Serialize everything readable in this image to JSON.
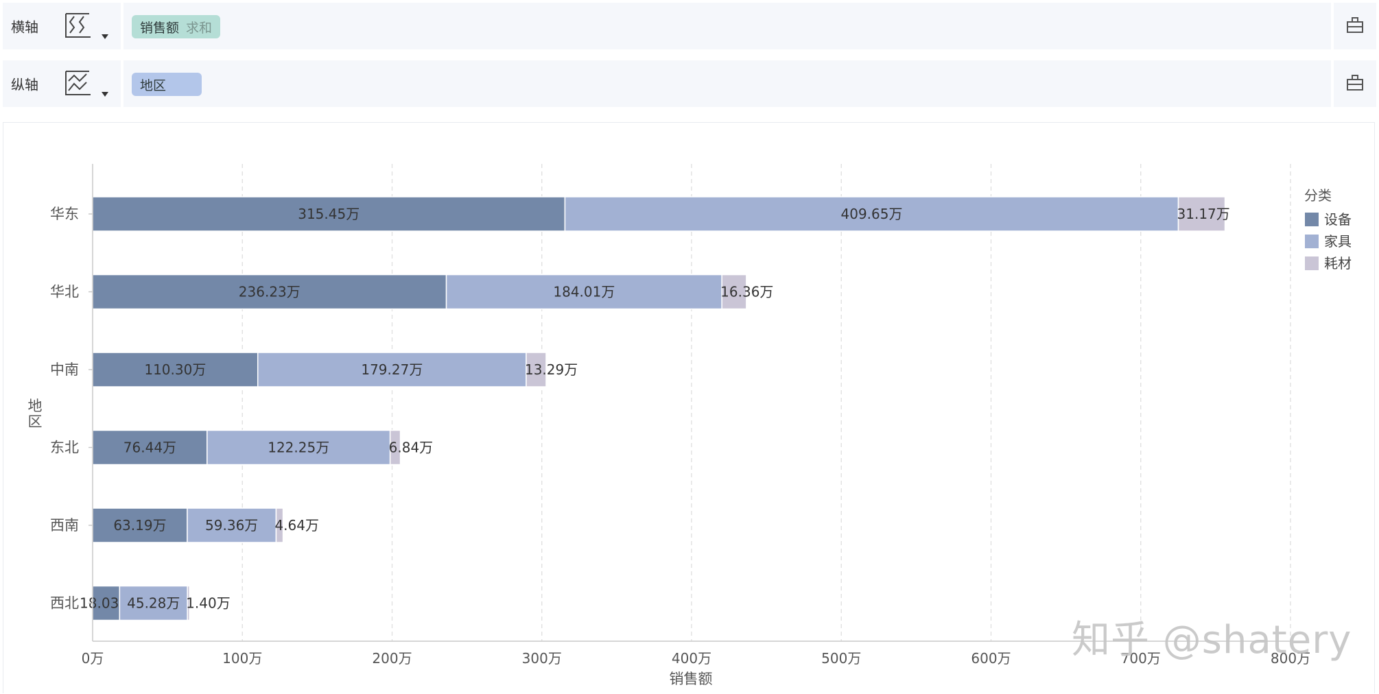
{
  "shelves": {
    "x_axis": {
      "label": "横轴",
      "field": "销售额",
      "aggregation": "求和"
    },
    "y_axis": {
      "label": "纵轴",
      "field": "地区"
    }
  },
  "watermark": "知乎 @shatery",
  "colors": {
    "设备": "#7388a8",
    "家具": "#a2b1d3",
    "耗材": "#cac5d6"
  },
  "chart_data": {
    "type": "bar",
    "orientation": "horizontal",
    "stacked": true,
    "categories": [
      "华东",
      "华北",
      "中南",
      "东北",
      "西南",
      "西北"
    ],
    "series": [
      {
        "name": "设备",
        "values": [
          315.45,
          236.23,
          110.3,
          76.44,
          63.19,
          18.03
        ]
      },
      {
        "name": "家具",
        "values": [
          409.65,
          184.01,
          179.27,
          122.25,
          59.36,
          45.28
        ]
      },
      {
        "name": "耗材",
        "values": [
          31.17,
          16.36,
          13.29,
          6.84,
          4.64,
          1.4
        ]
      }
    ],
    "value_suffix": "万",
    "xlim": [
      0,
      800
    ],
    "x_ticks": [
      "0万",
      "100万",
      "200万",
      "300万",
      "400万",
      "500万",
      "600万",
      "700万",
      "800万"
    ],
    "xlabel": "销售额",
    "ylabel": "地区",
    "legend_title": "分类",
    "legend_position": "top-right",
    "grid": "vertical-dashed"
  }
}
